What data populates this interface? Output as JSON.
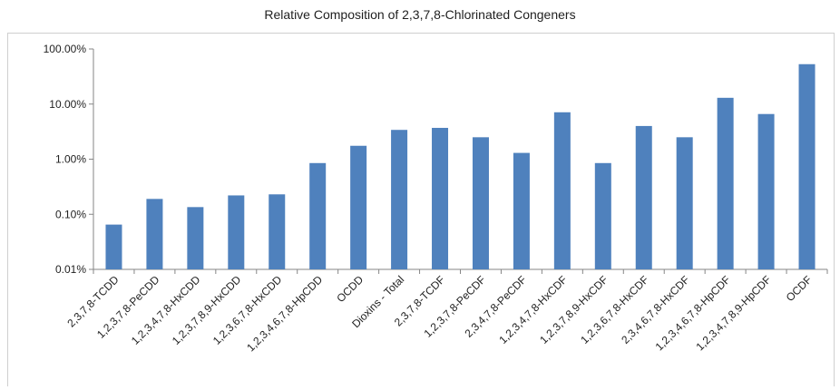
{
  "chart_data": {
    "type": "bar",
    "title": "Relative Composition of 2,3,7,8-Chlorinated Congeners",
    "xlabel": "",
    "ylabel": "",
    "yscale": "log",
    "ylim": [
      0.0001,
      1.0
    ],
    "y_ticks": [
      0.0001,
      0.001,
      0.01,
      0.1,
      1.0
    ],
    "y_tick_labels": [
      "0.01%",
      "0.10%",
      "1.00%",
      "10.00%",
      "100.00%"
    ],
    "grid": false,
    "legend": "none",
    "bar_color": "#4f81bd",
    "categories": [
      "2,3,7,8-TCDD",
      "1,2,3,7,8-PeCDD",
      "1,2,3,4,7,8-HxCDD",
      "1,2,3,7,8,9-HxCDD",
      "1,2,3,6,7,8-HxCDD",
      "1,2,3,4,6,7,8-HpCDD",
      "OCDD",
      "Dioxins - Total",
      "2,3,7,8-TCDF",
      "1,2,3,7,8-PeCDF",
      "2,3,4,7,8-PeCDF",
      "1,2,3,4,7,8-HxCDF",
      "1,2,3,7,8,9-HxCDF",
      "1,2,3,6,7,8-HxCDF",
      "2,3,4,6,7,8-HxCDF",
      "1,2,3,4,6,7,8-HpCDF",
      "1,2,3,4,7,8,9-HpCDF",
      "OCDF"
    ],
    "values": [
      0.00065,
      0.0019,
      0.00135,
      0.0022,
      0.0023,
      0.0085,
      0.0175,
      0.034,
      0.037,
      0.025,
      0.013,
      0.071,
      0.0085,
      0.04,
      0.025,
      0.13,
      0.066,
      0.53
    ]
  }
}
